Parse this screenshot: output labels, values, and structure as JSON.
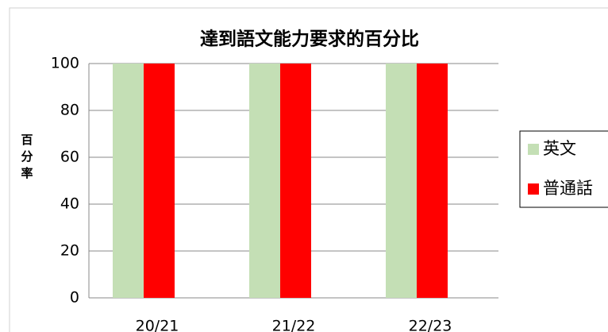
{
  "chart_data": {
    "type": "bar",
    "title": "達到語文能力要求的百分比",
    "y_label": "百分率",
    "categories": [
      "20/21",
      "21/22",
      "22/23"
    ],
    "series": [
      {
        "name": "英文",
        "color": "#c4dfb5",
        "values": [
          100,
          100,
          100
        ]
      },
      {
        "name": "普通話",
        "color": "#ff0000",
        "values": [
          100,
          100,
          100
        ]
      }
    ],
    "ylim": [
      0,
      100
    ],
    "yticks": [
      0,
      20,
      40,
      60,
      80,
      100
    ],
    "grid": true,
    "legend": "right"
  }
}
